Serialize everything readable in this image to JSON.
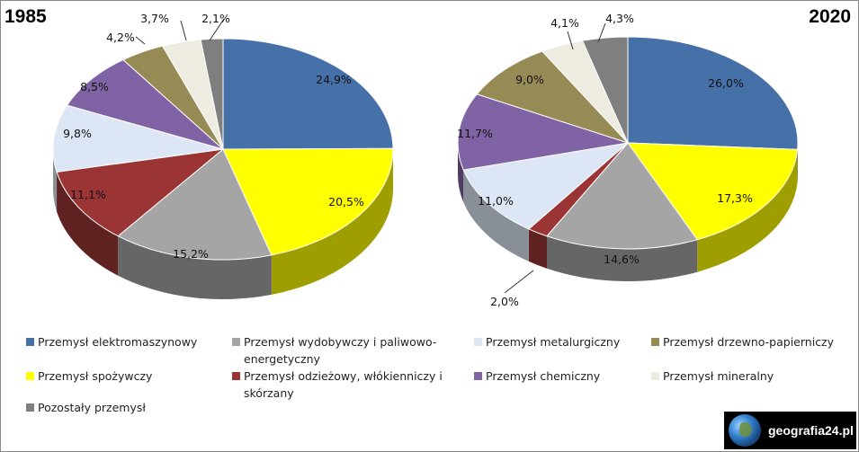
{
  "chart_data": [
    {
      "type": "pie",
      "title": "1985",
      "categories": [
        "Przemysł elektromaszynowy",
        "Przemysł spożywczy",
        "Przemysł wydobywczy i paliwowo-energetyczny",
        "Przemysł odzieżowy, włókienniczy i skórzany",
        "Przemysł metalurgiczny",
        "Przemysł chemiczny",
        "Przemysł drzewno-papierniczy",
        "Przemysł mineralny",
        "Pozostały przemysł"
      ],
      "values": [
        24.9,
        20.5,
        15.2,
        11.1,
        9.8,
        8.5,
        4.2,
        3.7,
        2.1
      ],
      "labels": [
        "24,9%",
        "20,5%",
        "15,2%",
        "11,1%",
        "9,8%",
        "8,5%",
        "4,2%",
        "3,7%",
        "2,1%"
      ]
    },
    {
      "type": "pie",
      "title": "2020",
      "categories": [
        "Przemysł elektromaszynowy",
        "Przemysł spożywczy",
        "Przemysł wydobywczy i paliwowo-energetyczny",
        "Przemysł odzieżowy, włókienniczy i skórzany",
        "Przemysł metalurgiczny",
        "Przemysł chemiczny",
        "Przemysł drzewno-papierniczy",
        "Przemysł mineralny",
        "Pozostały przemysł"
      ],
      "values": [
        26.0,
        17.3,
        14.6,
        2.0,
        11.0,
        11.7,
        9.0,
        4.1,
        4.3
      ],
      "labels": [
        "26,0%",
        "17,3%",
        "14,6%",
        "2,0%",
        "11,0%",
        "11,7%",
        "9,0%",
        "4,1%",
        "4,3%"
      ]
    }
  ],
  "colors": [
    "#4670A8",
    "#FFFF00",
    "#A5A5A5",
    "#9B3535",
    "#DCE6F4",
    "#8063A5",
    "#968A55",
    "#EEEBE0",
    "#7F7F7F"
  ],
  "legend": {
    "placement": "bottom",
    "items": [
      {
        "label": "Przemysł elektromaszynowy",
        "color": "#4670A8"
      },
      {
        "label": "Przemysł wydobywczy i paliwowo-",
        "label2": "energetyczny",
        "color": "#A5A5A5"
      },
      {
        "label": "Przemysł metalurgiczny",
        "color": "#DCE6F4"
      },
      {
        "label": "Przemysł drzewno-papierniczy",
        "color": "#968A55"
      },
      {
        "label": "Przemysł spożywczy",
        "color": "#FFFF00"
      },
      {
        "label": "Przemysł odzieżowy, włókienniczy i",
        "label2": "skórzany",
        "color": "#9B3535"
      },
      {
        "label": "Przemysł chemiczny",
        "color": "#8063A5"
      },
      {
        "label": "Przemysł mineralny",
        "color": "#EEEBE0"
      },
      {
        "label": "Pozostały przemysł",
        "color": "#7F7F7F"
      }
    ]
  },
  "logo": {
    "text": "geografia24.pl",
    "icon": "globe-icon"
  }
}
